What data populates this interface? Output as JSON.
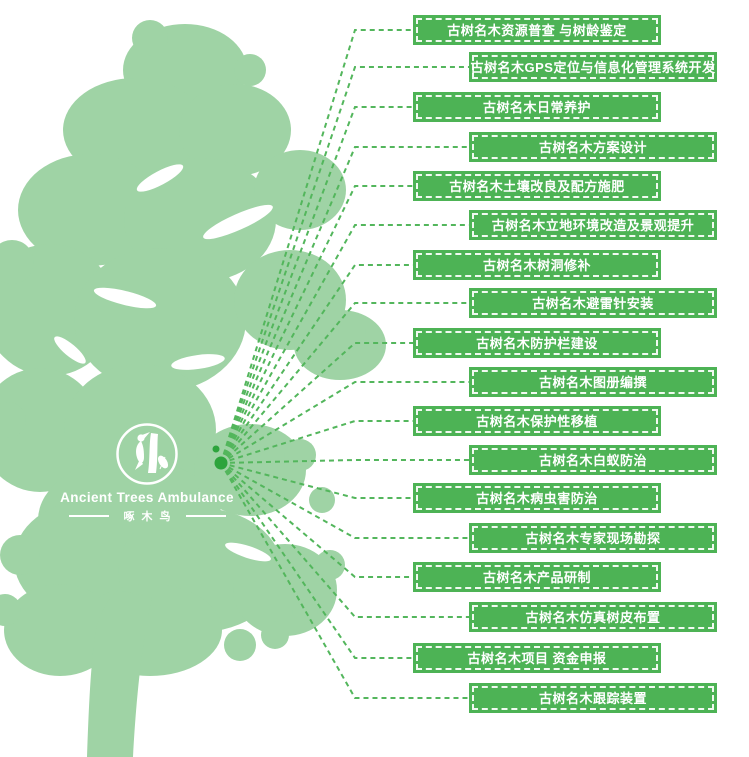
{
  "colors": {
    "banner_green": "#4db355",
    "tree_green": "#9fd3a5",
    "line_green": "#53b65c",
    "dot_green": "#2da43c",
    "text_white": "#ffffff"
  },
  "logo": {
    "title": "Ancient Trees Ambulance",
    "subtitle": "啄木鸟"
  },
  "banners": [
    {
      "label": "古树名木资源普查 与树龄鉴定"
    },
    {
      "label": "古树名木GPS定位与信息化管理系统开发"
    },
    {
      "label": "古树名木日常养护"
    },
    {
      "label": "古树名木方案设计"
    },
    {
      "label": "古树名木土壤改良及配方施肥"
    },
    {
      "label": "古树名木立地环境改造及景观提升"
    },
    {
      "label": "古树名木树洞修补"
    },
    {
      "label": "古树名木避雷针安装"
    },
    {
      "label": "古树名木防护栏建设"
    },
    {
      "label": "古树名木图册编撰"
    },
    {
      "label": "古树名木保护性移植"
    },
    {
      "label": "古树名木白蚁防治"
    },
    {
      "label": "古树名木病虫害防治"
    },
    {
      "label": "古树名木专家现场勘探"
    },
    {
      "label": "古树名木产品研制"
    },
    {
      "label": "古树名木仿真树皮布置"
    },
    {
      "label": "古树名木项目 资金申报"
    },
    {
      "label": "古树名木跟踪装置"
    }
  ]
}
